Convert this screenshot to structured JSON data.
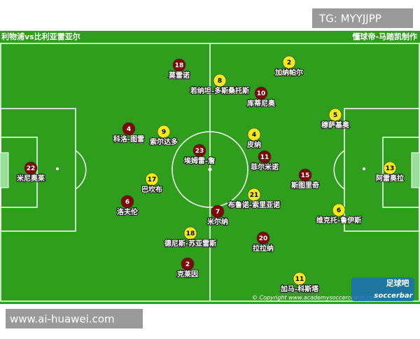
{
  "watermark_top": "TG: MYYJJPP",
  "watermark_bottom": "www.ai-huawei.com",
  "header": {
    "left": "利物浦vs比利亚雷亚尔",
    "right": "懂球帝-马踏凯制作"
  },
  "copyright": "© Copyright www.academysoccercoach.com",
  "logo": {
    "title": "足球吧",
    "subtitle": "soccerbar"
  },
  "teams": [
    {
      "color": "#7d0a0a",
      "players": [
        {
          "number": 18,
          "name": "莫雷诺"
        },
        {
          "number": 10,
          "name": "库蒂尼奥"
        },
        {
          "number": 4,
          "name": "科洛-图雷"
        },
        {
          "number": 23,
          "name": "埃姆雷-詹"
        },
        {
          "number": 11,
          "name": "菲尔米诺"
        },
        {
          "number": 22,
          "name": "米尼奥莱"
        },
        {
          "number": 15,
          "name": "斯图里奇"
        },
        {
          "number": 6,
          "name": "洛夫伦"
        },
        {
          "number": 7,
          "name": "米尔纳"
        },
        {
          "number": 20,
          "name": "拉拉纳"
        },
        {
          "number": 2,
          "name": "克莱因"
        }
      ]
    },
    {
      "color": "#f2ea1a",
      "players": [
        {
          "number": 2,
          "name": "加纳帕尔"
        },
        {
          "number": 8,
          "name": "若纳坦-多斯桑托斯"
        },
        {
          "number": 5,
          "name": "穆萨基奥"
        },
        {
          "number": 9,
          "name": "索尔达多"
        },
        {
          "number": 4,
          "name": "皮纳"
        },
        {
          "number": 13,
          "name": "阿雷奥拉"
        },
        {
          "number": 17,
          "name": "巴坎布"
        },
        {
          "number": 21,
          "name": "布鲁诺-索里亚诺"
        },
        {
          "number": 6,
          "name": "维克托-鲁伊斯"
        },
        {
          "number": 18,
          "name": "德尼斯-苏亚雷斯"
        },
        {
          "number": 11,
          "name": "加马-科斯塔"
        }
      ]
    }
  ]
}
